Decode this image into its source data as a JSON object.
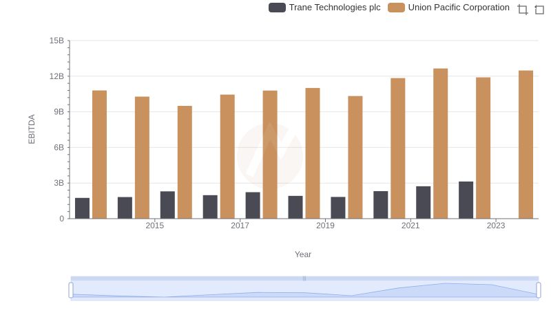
{
  "legend": {
    "items": [
      {
        "label": "Trane Technologies plc",
        "color": "#4a4a55"
      },
      {
        "label": "Union Pacific Corporation",
        "color": "#c8915e"
      }
    ]
  },
  "toolbar": {
    "zoom_icon": "data-zoom-icon",
    "restore_icon": "restore-icon"
  },
  "chart_data": {
    "type": "bar",
    "title": "",
    "xlabel": "Year",
    "ylabel": "EBITDA",
    "ylim": [
      0,
      15000000000
    ],
    "yticks": [
      "0",
      "3B",
      "6B",
      "9B",
      "12B",
      "15B"
    ],
    "categories": [
      "2014",
      "2015",
      "2016",
      "2017",
      "2018",
      "2019",
      "2020",
      "2021",
      "2022",
      "2023",
      "2024"
    ],
    "xtick_labels": [
      "2015",
      "2017",
      "2019",
      "2021",
      "2023"
    ],
    "series": [
      {
        "name": "Trane Technologies plc",
        "values": [
          1750000000,
          1820000000,
          2300000000,
          1980000000,
          2230000000,
          1920000000,
          1830000000,
          2320000000,
          2730000000,
          3130000000,
          null
        ]
      },
      {
        "name": "Union Pacific Corporation",
        "values": [
          10800000000,
          10280000000,
          9500000000,
          10450000000,
          10790000000,
          11010000000,
          10330000000,
          11840000000,
          12650000000,
          11900000000,
          12480000000
        ]
      }
    ]
  }
}
